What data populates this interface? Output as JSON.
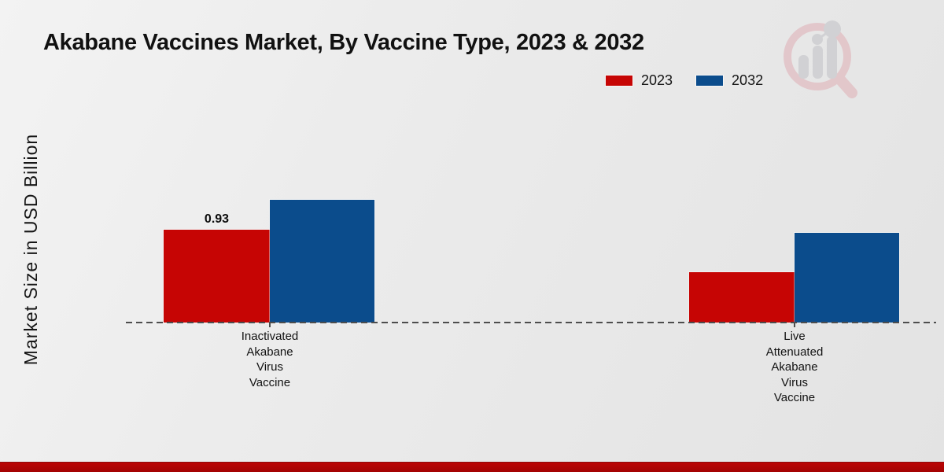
{
  "title": "Akabane Vaccines Market, By Vaccine Type, 2023 & 2032",
  "y_axis_label": "Market Size in USD Billion",
  "legend": [
    {
      "label": "2023",
      "color": "#c60504"
    },
    {
      "label": "2032",
      "color": "#0b4c8c"
    }
  ],
  "value_labels": {
    "inactivated_2023": "0.93"
  },
  "chart_data": {
    "type": "bar",
    "title": "Akabane Vaccines Market, By Vaccine Type, 2023 & 2032",
    "xlabel": "",
    "ylabel": "Market Size in USD Billion",
    "categories": [
      "Inactivated Akabane Virus Vaccine",
      "Live Attenuated Akabane Virus Vaccine"
    ],
    "category_label_lines": [
      [
        "Inactivated",
        "Akabane",
        "Virus",
        "Vaccine"
      ],
      [
        "Live",
        "Attenuated",
        "Akabane",
        "Virus",
        "Vaccine"
      ]
    ],
    "series": [
      {
        "name": "2023",
        "color": "#c60504",
        "values": [
          0.93,
          0.5
        ]
      },
      {
        "name": "2032",
        "color": "#0b4c8c",
        "values": [
          1.23,
          0.9
        ]
      }
    ],
    "data_labels": [
      {
        "series": "2023",
        "category_index": 0,
        "text": "0.93"
      }
    ],
    "ylim": [
      0,
      1.6
    ],
    "grid": false,
    "baseline_style": "dashed",
    "legend_position": "top-right"
  },
  "footer": {
    "bar_color": "#bb0404"
  },
  "logo_name": "market-research-magnifier-logo",
  "colors": {
    "background_start": "#f3f3f3",
    "background_end": "#e3e3e3",
    "baseline": "#4d4d4d",
    "title_text": "#111111"
  }
}
